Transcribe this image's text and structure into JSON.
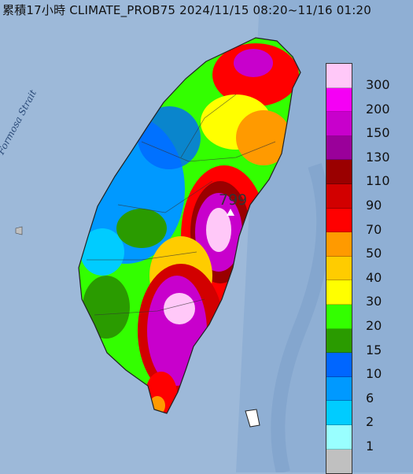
{
  "header": {
    "title": "累積17小時 CLIMATE_PROB75 2024/11/15 08:20~11/16 01:20"
  },
  "map": {
    "water_label": "Formosa Strait",
    "peak_value": "799"
  },
  "legend": {
    "items": [
      {
        "label": "300",
        "color": "#ffc8f8"
      },
      {
        "label": "200",
        "color": "#f500f5"
      },
      {
        "label": "150",
        "color": "#c800cc"
      },
      {
        "label": "130",
        "color": "#9a009a"
      },
      {
        "label": "110",
        "color": "#9a0000"
      },
      {
        "label": "90",
        "color": "#d20000"
      },
      {
        "label": "70",
        "color": "#ff0000"
      },
      {
        "label": "50",
        "color": "#ff9a00"
      },
      {
        "label": "40",
        "color": "#ffcc00"
      },
      {
        "label": "30",
        "color": "#ffff00"
      },
      {
        "label": "20",
        "color": "#33ff00"
      },
      {
        "label": "15",
        "color": "#2a9b00"
      },
      {
        "label": "10",
        "color": "#0066ff"
      },
      {
        "label": "6",
        "color": "#0099ff"
      },
      {
        "label": "2",
        "color": "#00ccff"
      },
      {
        "label": "1",
        "color": "#99ffff"
      },
      {
        "label": "",
        "color": "#c0c0c0"
      }
    ]
  }
}
